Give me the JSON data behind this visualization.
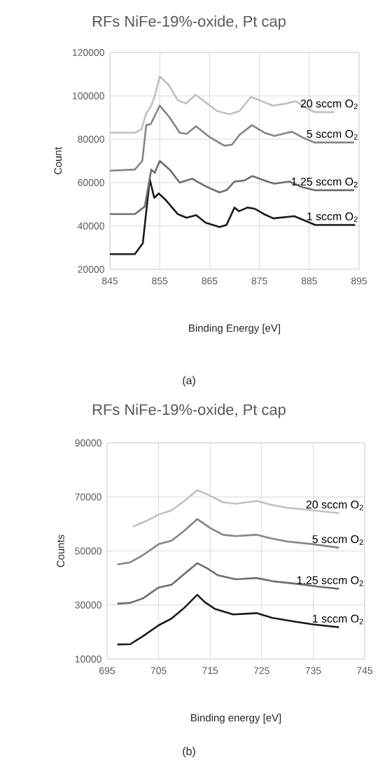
{
  "chart_data": [
    {
      "type": "line",
      "title": "RFs NiFe-19%-oxide, Pt cap",
      "xlabel": "Binding Energy [eV]",
      "ylabel": "Count",
      "xlim": [
        845,
        895
      ],
      "xticks": [
        845,
        855,
        865,
        875,
        885,
        895
      ],
      "ylim": [
        20000,
        120000
      ],
      "yticks": [
        20000,
        40000,
        60000,
        80000,
        100000,
        120000
      ],
      "grid": true,
      "series": [
        {
          "name": "1 sccm O$_{2}$",
          "color": "#1a1a1a",
          "x": [
            845,
            850,
            851.6,
            853.0,
            853.9,
            854.8,
            856.2,
            858.6,
            860.4,
            862.3,
            864.2,
            867.0,
            868.4,
            870.0,
            870.9,
            872.6,
            874.0,
            875.9,
            877.8,
            882.0,
            886.2,
            894.2
          ],
          "values": [
            27000,
            27000,
            32000,
            61500,
            53000,
            55000,
            52000,
            45500,
            43800,
            45000,
            41500,
            39500,
            40500,
            48500,
            46800,
            48500,
            48000,
            45500,
            43500,
            44500,
            40500,
            40500
          ]
        },
        {
          "name": "1.25 sccm O$_{2}$",
          "color": "#6e6e6e",
          "x": [
            845,
            850,
            852,
            853.3,
            854.0,
            855.0,
            857.0,
            859.0,
            861.5,
            864,
            867,
            868.4,
            870,
            872,
            873.6,
            876,
            878,
            881,
            883.5,
            886,
            894
          ],
          "values": [
            45500,
            45500,
            49000,
            66000,
            64500,
            70000,
            66000,
            60000,
            61800,
            58500,
            55500,
            56500,
            60500,
            61000,
            63000,
            61000,
            59500,
            60500,
            58000,
            56500,
            56500
          ]
        },
        {
          "name": "5 sccm O$_{2}$",
          "color": "#858585",
          "x": [
            845,
            850,
            851.5,
            852.3,
            853.2,
            855,
            857,
            859,
            860.4,
            862.3,
            865,
            868,
            869.5,
            871,
            873.5,
            876,
            878,
            881.5,
            883.5,
            886,
            894
          ],
          "values": [
            65500,
            66000,
            70000,
            86500,
            87000,
            95500,
            90000,
            83000,
            82500,
            86000,
            81000,
            77000,
            77500,
            82000,
            86500,
            83000,
            81500,
            83500,
            81000,
            78500,
            78500
          ]
        },
        {
          "name": "20 sccm O$_{2}$",
          "color": "#c0c0c0",
          "x": [
            845,
            850,
            851.3,
            852.3,
            853.3,
            854.0,
            855.0,
            856.8,
            858.6,
            860.3,
            862.2,
            864.5,
            866.5,
            869.0,
            871.0,
            873.3,
            875.5,
            877.7,
            880.5,
            882.3,
            884.4,
            886.0,
            890.0
          ],
          "values": [
            83000,
            83000,
            84500,
            92000,
            95500,
            100000,
            109000,
            105000,
            98000,
            96500,
            100500,
            96500,
            93000,
            91500,
            93000,
            99500,
            97500,
            95500,
            96500,
            97500,
            94500,
            92500,
            92500
          ]
        }
      ],
      "annotations": [
        "(a)"
      ]
    },
    {
      "type": "line",
      "title": "RFs NiFe-19%-oxide, Pt cap",
      "xlabel": "Binding energy [eV]",
      "ylabel": "Counts",
      "xlim": [
        695,
        745
      ],
      "xticks": [
        695,
        705,
        715,
        725,
        735,
        745
      ],
      "ylim": [
        10000,
        90000
      ],
      "yticks": [
        10000,
        30000,
        50000,
        70000,
        90000
      ],
      "grid": true,
      "series": [
        {
          "name": "1 sccm O$_{2}$",
          "color": "#1a1a1a",
          "x": [
            697,
            699.5,
            702,
            705,
            707.5,
            710,
            712.5,
            714,
            716,
            719.5,
            724,
            727,
            731,
            735,
            740
          ],
          "values": [
            15400,
            15500,
            18500,
            22500,
            25000,
            29000,
            33800,
            31000,
            28500,
            26500,
            27000,
            25300,
            24000,
            22800,
            21800
          ]
        },
        {
          "name": "1.25 sccm O$_{2}$",
          "color": "#6e6e6e",
          "x": [
            697,
            699.5,
            702,
            705,
            707.5,
            710,
            712.5,
            714.5,
            716.5,
            720,
            724,
            727.5,
            732,
            736,
            740
          ],
          "values": [
            30500,
            30800,
            32500,
            36500,
            37500,
            41500,
            45500,
            43500,
            41000,
            39500,
            40000,
            38700,
            37800,
            36800,
            36000
          ]
        },
        {
          "name": "5 sccm O$_{2}$",
          "color": "#858585",
          "x": [
            697,
            699.5,
            702,
            705,
            707.5,
            710,
            712.5,
            715,
            717.5,
            720,
            724,
            726.5,
            730,
            735,
            740
          ],
          "values": [
            45000,
            45800,
            48500,
            52500,
            53800,
            57500,
            61800,
            58500,
            56000,
            55500,
            56000,
            54800,
            53500,
            52500,
            51200
          ]
        },
        {
          "name": "20 sccm O$_{2}$",
          "color": "#c0c0c0",
          "x": [
            700,
            702.5,
            705,
            707.5,
            710,
            712.5,
            715,
            717.5,
            720,
            724,
            727,
            730,
            735,
            740
          ],
          "values": [
            59000,
            61000,
            63500,
            65000,
            68500,
            72500,
            70500,
            68000,
            67500,
            68500,
            67000,
            66000,
            65000,
            64000
          ]
        }
      ],
      "annotations": [
        "(b)"
      ]
    }
  ]
}
